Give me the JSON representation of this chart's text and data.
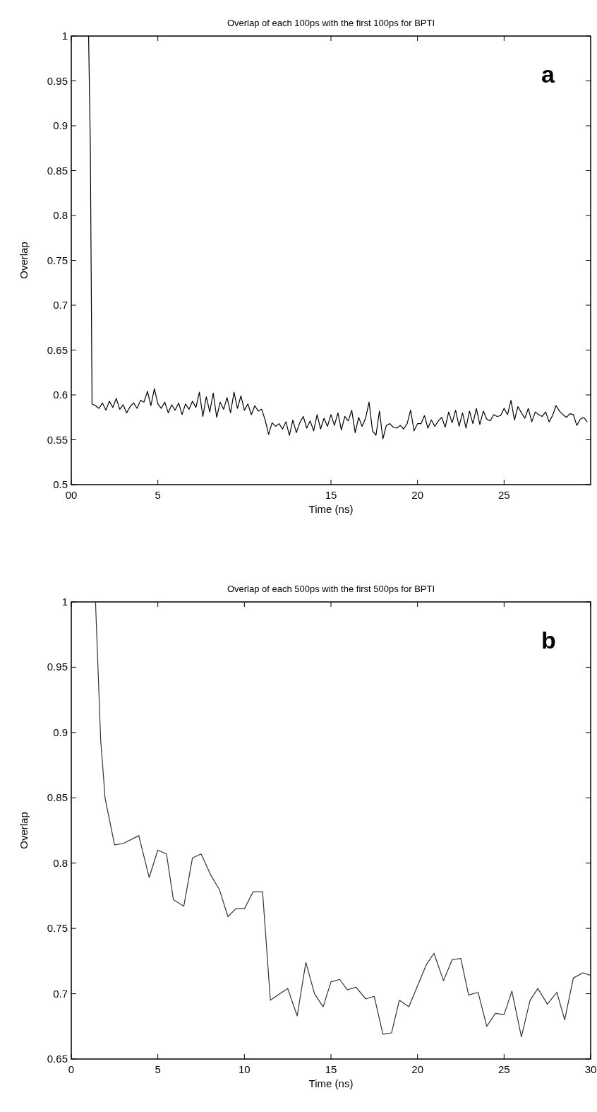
{
  "chart_data": [
    {
      "type": "line",
      "title": "Overlap of each 100ps with the first 100ps for BPTI",
      "xlabel": "Time (ns)",
      "ylabel": "Overlap",
      "annotations": [
        "a"
      ],
      "xlim": [
        0,
        30
      ],
      "xticks": [
        {
          "value": 0,
          "label": "00"
        },
        5,
        15,
        20,
        25
      ],
      "ylim": [
        0.5,
        1
      ],
      "yticks": [
        0.5,
        0.55,
        0.6,
        0.65,
        0.7,
        0.75,
        0.8,
        0.85,
        0.9,
        0.95,
        1
      ],
      "grid": false,
      "series": [
        {
          "color": "#000000",
          "x": [
            1.0,
            1.1,
            1.2,
            1.4,
            1.6,
            1.8,
            2.0,
            2.2,
            2.4,
            2.6,
            2.8,
            3.0,
            3.2,
            3.4,
            3.6,
            3.8,
            4.0,
            4.2,
            4.4,
            4.6,
            4.8,
            5.0,
            5.2,
            5.4,
            5.6,
            5.8,
            6.0,
            6.2,
            6.4,
            6.6,
            6.8,
            7.0,
            7.2,
            7.4,
            7.6,
            7.8,
            8.0,
            8.2,
            8.4,
            8.6,
            8.8,
            9.0,
            9.2,
            9.4,
            9.6,
            9.8,
            10.0,
            10.2,
            10.4,
            10.6,
            10.8,
            11.0,
            11.2,
            11.4,
            11.6,
            11.8,
            12.0,
            12.2,
            12.4,
            12.6,
            12.8,
            13.0,
            13.2,
            13.4,
            13.6,
            13.8,
            14.0,
            14.2,
            14.4,
            14.6,
            14.8,
            15.0,
            15.2,
            15.4,
            15.6,
            15.8,
            16.0,
            16.2,
            16.4,
            16.6,
            16.8,
            17.0,
            17.2,
            17.4,
            17.6,
            17.8,
            18.0,
            18.2,
            18.4,
            18.6,
            18.8,
            19.0,
            19.2,
            19.4,
            19.6,
            19.8,
            20.0,
            20.2,
            20.4,
            20.6,
            20.8,
            21.0,
            21.2,
            21.4,
            21.6,
            21.8,
            22.0,
            22.2,
            22.4,
            22.6,
            22.8,
            23.0,
            23.2,
            23.4,
            23.6,
            23.8,
            24.0,
            24.2,
            24.4,
            24.6,
            24.8,
            25.0,
            25.2,
            25.4,
            25.6,
            25.8,
            26.0,
            26.2,
            26.4,
            26.6,
            26.8,
            27.0,
            27.2,
            27.4,
            27.6,
            27.8,
            28.0,
            28.2,
            28.4,
            28.6,
            28.8,
            29.0,
            29.2,
            29.4,
            29.6,
            29.8
          ],
          "values": [
            1.0,
            0.88,
            0.59,
            0.588,
            0.585,
            0.591,
            0.583,
            0.593,
            0.586,
            0.596,
            0.584,
            0.589,
            0.58,
            0.587,
            0.591,
            0.585,
            0.594,
            0.592,
            0.604,
            0.588,
            0.607,
            0.59,
            0.585,
            0.592,
            0.58,
            0.589,
            0.583,
            0.591,
            0.578,
            0.59,
            0.584,
            0.593,
            0.586,
            0.603,
            0.576,
            0.598,
            0.581,
            0.602,
            0.575,
            0.592,
            0.584,
            0.597,
            0.58,
            0.603,
            0.585,
            0.599,
            0.583,
            0.59,
            0.578,
            0.588,
            0.582,
            0.584,
            0.572,
            0.556,
            0.569,
            0.565,
            0.568,
            0.562,
            0.57,
            0.555,
            0.572,
            0.558,
            0.569,
            0.576,
            0.563,
            0.571,
            0.56,
            0.578,
            0.562,
            0.574,
            0.565,
            0.578,
            0.566,
            0.58,
            0.561,
            0.576,
            0.571,
            0.583,
            0.558,
            0.575,
            0.565,
            0.574,
            0.592,
            0.56,
            0.555,
            0.582,
            0.551,
            0.566,
            0.568,
            0.564,
            0.563,
            0.566,
            0.562,
            0.568,
            0.583,
            0.56,
            0.568,
            0.568,
            0.577,
            0.563,
            0.572,
            0.565,
            0.571,
            0.575,
            0.564,
            0.581,
            0.569,
            0.583,
            0.565,
            0.58,
            0.563,
            0.582,
            0.568,
            0.585,
            0.567,
            0.582,
            0.573,
            0.571,
            0.578,
            0.576,
            0.577,
            0.585,
            0.578,
            0.594,
            0.572,
            0.587,
            0.58,
            0.574,
            0.585,
            0.57,
            0.581,
            0.578,
            0.576,
            0.581,
            0.57,
            0.577,
            0.588,
            0.582,
            0.578,
            0.575,
            0.579,
            0.578,
            0.566,
            0.573,
            0.575,
            0.57
          ]
        }
      ]
    },
    {
      "type": "line",
      "title": "Overlap of each 500ps with the first 500ps for BPTI",
      "xlabel": "Time (ns)",
      "ylabel": "Overlap",
      "annotations": [
        "b"
      ],
      "xlim": [
        0,
        30
      ],
      "xticks": [
        0,
        5,
        10,
        15,
        20,
        25,
        30
      ],
      "ylim": [
        0.65,
        1
      ],
      "yticks": [
        0.65,
        0.7,
        0.75,
        0.8,
        0.85,
        0.9,
        0.95,
        1
      ],
      "grid": false,
      "series": [
        {
          "color": "#333333",
          "x": [
            1.4,
            1.7,
            1.85,
            1.95,
            2.5,
            3.0,
            3.9,
            4.5,
            5.0,
            5.5,
            5.9,
            6.5,
            7.0,
            7.5,
            8.05,
            8.55,
            9.05,
            9.5,
            10.0,
            10.5,
            11.05,
            11.5,
            12.05,
            12.5,
            13.05,
            13.55,
            14.05,
            14.55,
            15.0,
            15.5,
            15.95,
            16.45,
            17.0,
            17.5,
            18.0,
            18.5,
            18.95,
            19.5,
            20.5,
            20.95,
            21.5,
            22.0,
            22.5,
            22.95,
            23.5,
            24.0,
            24.5,
            25.0,
            25.45,
            26.0,
            26.5,
            26.95,
            27.5,
            28.05,
            28.5,
            29.0,
            29.55,
            30.0
          ],
          "values": [
            1.0,
            0.894,
            0.868,
            0.85,
            0.814,
            0.815,
            0.821,
            0.789,
            0.81,
            0.807,
            0.772,
            0.767,
            0.804,
            0.807,
            0.791,
            0.78,
            0.759,
            0.765,
            0.765,
            0.778,
            0.778,
            0.695,
            0.7,
            0.704,
            0.683,
            0.724,
            0.7,
            0.69,
            0.709,
            0.711,
            0.703,
            0.705,
            0.696,
            0.698,
            0.669,
            0.67,
            0.695,
            0.69,
            0.722,
            0.731,
            0.71,
            0.726,
            0.727,
            0.699,
            0.701,
            0.675,
            0.685,
            0.684,
            0.702,
            0.667,
            0.695,
            0.704,
            0.692,
            0.701,
            0.68,
            0.712,
            0.716,
            0.714
          ]
        }
      ]
    }
  ]
}
